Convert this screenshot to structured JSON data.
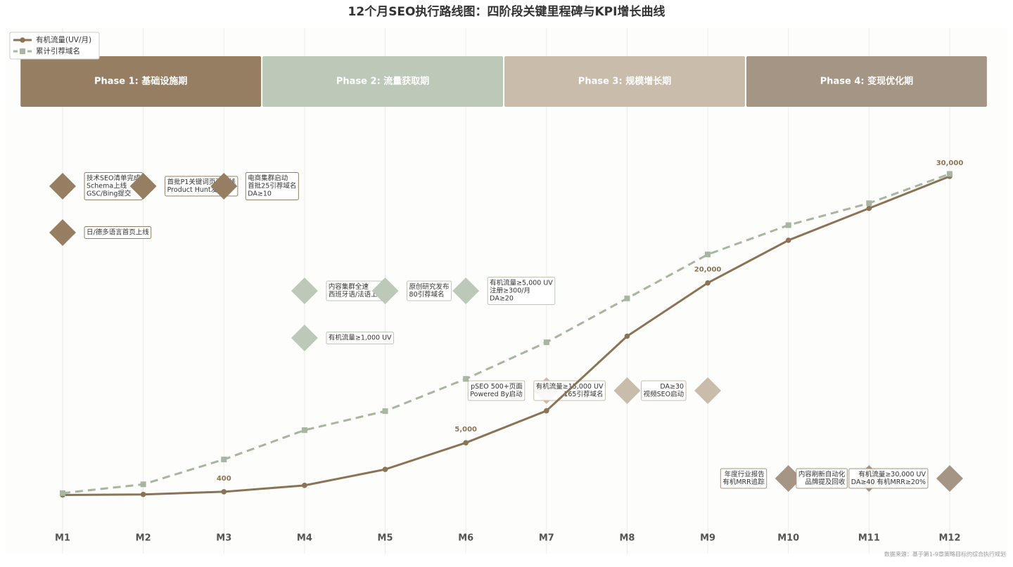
{
  "chart_data": {
    "type": "line",
    "title": "12个月SEO执行路线图：四阶段关键里程碑与KPI增长曲线",
    "categories": [
      "M1",
      "M2",
      "M3",
      "M4",
      "M5",
      "M6",
      "M7",
      "M8",
      "M9",
      "M10",
      "M11",
      "M12"
    ],
    "series": [
      {
        "name": "有机流量(UV/月)",
        "color": "#8b7355",
        "values": [
          100,
          150,
          400,
          1000,
          2500,
          5000,
          8000,
          15000,
          20000,
          24000,
          27000,
          30000
        ],
        "value_labels": [
          null,
          null,
          "400",
          null,
          null,
          "5,000",
          null,
          null,
          "20,000",
          null,
          null,
          "30,000"
        ]
      },
      {
        "name": "累计引荐域名",
        "color": "#a8b5a0",
        "axis": "y2",
        "dashed": true,
        "values": [
          2,
          8,
          25,
          45,
          58,
          80,
          105,
          135,
          165,
          185,
          200,
          220
        ]
      }
    ],
    "ylim": [
      0,
      36000
    ],
    "y2lim": [
      0,
      262
    ],
    "grid": true,
    "legend": "upper left",
    "phases": [
      {
        "title": "Phase 1: 基础设施期",
        "color": "#957e62",
        "milestones": [
          [
            "技术SEO清单完成",
            "Schema上线",
            "GSC/Bing提交"
          ],
          [
            "首批P1关键词页面上线",
            "Product Hunt发布"
          ],
          [
            "电商集群启动",
            "首批25引荐域名",
            "DA≥10"
          ],
          [
            "日/德多语言首页上线"
          ]
        ]
      },
      {
        "title": "Phase 2: 流量获取期",
        "color": "#bcc9b8",
        "milestones": [
          [
            "内容集群全速",
            "西班牙语/法语上线"
          ],
          [
            "原创研究发布",
            "80引荐域名"
          ],
          [
            "有机流量≥5,000 UV",
            "注册≥300/月",
            "DA≥20"
          ],
          [
            "有机流量≥1,000 UV"
          ]
        ]
      },
      {
        "title": "Phase 3: 规模增长期",
        "color": "#c9bcab",
        "milestones": [
          [
            "pSEO 500+页面",
            "Powered By启动"
          ],
          [
            "有机流量≥15,000 UV",
            "165引荐域名"
          ],
          [
            "DA≥30",
            "视频SEO启动"
          ]
        ]
      },
      {
        "title": "Phase 4: 变现优化期",
        "color": "#a59585",
        "milestones": [
          [
            "年度行业报告",
            "有机MRR追踪"
          ],
          [
            "内容刷新自动化",
            "品牌提及回收"
          ],
          [
            "有机流量≥30,000 UV",
            "DA≥40 有机MRR≥20%"
          ]
        ]
      }
    ],
    "source": "数据来源：基于第1-9章策略目标的综合执行规划"
  }
}
